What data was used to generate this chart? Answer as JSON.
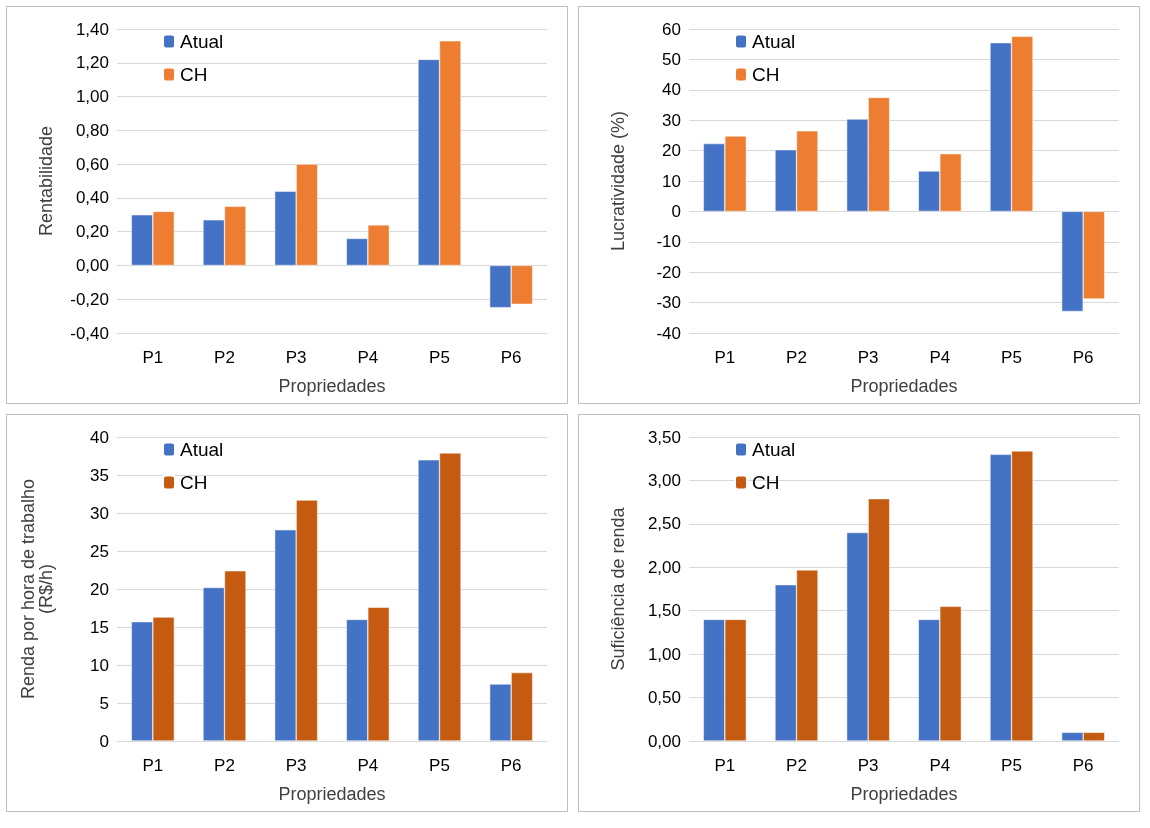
{
  "chart_data": [
    {
      "type": "bar",
      "xlabel": "Propriedades",
      "ylabel": "Rentabilidade",
      "categories": [
        "P1",
        "P2",
        "P3",
        "P4",
        "P5",
        "P6"
      ],
      "series": [
        {
          "name": "Atual",
          "color": "#4472c4",
          "values": [
            0.3,
            0.27,
            0.44,
            0.16,
            1.22,
            -0.25
          ]
        },
        {
          "name": "CH",
          "color": "#ed7d31",
          "values": [
            0.32,
            0.35,
            0.6,
            0.24,
            1.33,
            -0.23
          ]
        }
      ],
      "ylim": [
        -0.4,
        1.4
      ],
      "yticks": [
        {
          "value": -0.4,
          "label": "-0,40"
        },
        {
          "value": -0.2,
          "label": "-0,20"
        },
        {
          "value": 0,
          "label": "0,00"
        },
        {
          "value": 0.2,
          "label": "0,20"
        },
        {
          "value": 0.4,
          "label": "0,40"
        },
        {
          "value": 0.6,
          "label": "0,60"
        },
        {
          "value": 0.8,
          "label": "0,80"
        },
        {
          "value": 1.0,
          "label": "1,00"
        },
        {
          "value": 1.2,
          "label": "1,20"
        },
        {
          "value": 1.4,
          "label": "1,40"
        }
      ],
      "grid": "y",
      "legend": "top left"
    },
    {
      "type": "bar",
      "xlabel": "Propriedades",
      "ylabel": "Lucratividade (%)",
      "categories": [
        "P1",
        "P2",
        "P3",
        "P4",
        "P5",
        "P6"
      ],
      "series": [
        {
          "name": "Atual",
          "color": "#4472c4",
          "values": [
            22.3,
            20.3,
            30.4,
            13.3,
            55.5,
            -32.9
          ]
        },
        {
          "name": "CH",
          "color": "#ed7d31",
          "values": [
            24.8,
            26.5,
            37.5,
            19,
            57.6,
            -28.8
          ]
        }
      ],
      "ylim": [
        -40,
        60
      ],
      "yticks": [
        -40,
        -30,
        -20,
        -10,
        0,
        10,
        20,
        30,
        40,
        50,
        60
      ],
      "grid": "y",
      "legend": "top left"
    },
    {
      "type": "bar",
      "xlabel": "Propriedades",
      "ylabel": "Renda por hora de trabalho\n(R$/h)",
      "categories": [
        "P1",
        "P2",
        "P3",
        "P4",
        "P5",
        "P6"
      ],
      "series": [
        {
          "name": "Atual",
          "color": "#4472c4",
          "values": [
            15.7,
            20.2,
            27.8,
            16.0,
            37.0,
            7.5
          ]
        },
        {
          "name": "CH",
          "color": "#c55a11",
          "values": [
            16.3,
            22.4,
            31.7,
            17.6,
            37.9,
            9.0
          ]
        }
      ],
      "ylim": [
        0,
        40
      ],
      "yticks": [
        0,
        5,
        10,
        15,
        20,
        25,
        30,
        35,
        40
      ],
      "grid": "y",
      "legend": "top left"
    },
    {
      "type": "bar",
      "xlabel": "Propriedades",
      "ylabel": "Suficiência de renda",
      "categories": [
        "P1",
        "P2",
        "P3",
        "P4",
        "P5",
        "P6"
      ],
      "series": [
        {
          "name": "Atual",
          "color": "#4472c4",
          "values": [
            1.4,
            1.8,
            2.4,
            1.4,
            3.3,
            0.1
          ]
        },
        {
          "name": "CH",
          "color": "#c55a11",
          "values": [
            1.4,
            1.97,
            2.79,
            1.55,
            3.34,
            0.1
          ]
        }
      ],
      "ylim": [
        0,
        3.5
      ],
      "yticks": [
        {
          "value": 0,
          "label": "0,00"
        },
        {
          "value": 0.5,
          "label": "0,50"
        },
        {
          "value": 1,
          "label": "1,00"
        },
        {
          "value": 1.5,
          "label": "1,50"
        },
        {
          "value": 2,
          "label": "2,00"
        },
        {
          "value": 2.5,
          "label": "2,50"
        },
        {
          "value": 3,
          "label": "3,00"
        },
        {
          "value": 3.5,
          "label": "3,50"
        }
      ],
      "grid": "y",
      "legend": "top left"
    }
  ]
}
